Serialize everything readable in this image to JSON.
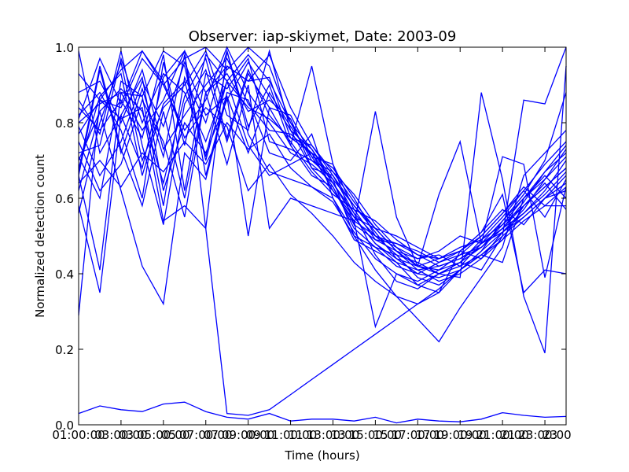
{
  "chart_data": {
    "type": "line",
    "title": "Observer: iap-skiymet, Date: 2003-09",
    "xlabel": "Time (hours)",
    "ylabel": "Normalized detection count",
    "xlim": [
      1,
      24
    ],
    "ylim": [
      0,
      1
    ],
    "x_ticks": [
      1,
      3,
      5,
      7,
      9,
      11,
      13,
      15,
      17,
      19,
      21,
      23
    ],
    "x_tick_labels": [
      "01:00:00",
      "03:00:00",
      "05:00:00",
      "07:00:00",
      "09:00:00",
      "11:00:00",
      "13:00:00",
      "15:00:00",
      "17:00:00",
      "19:00:00",
      "21:00:00",
      "23:00:00"
    ],
    "x_tick_labels_2": [
      "03",
      "05",
      "07",
      "09",
      "11",
      "13",
      "15",
      "17",
      "19",
      "21",
      "23",
      ""
    ],
    "y_ticks": [
      0,
      0.2,
      0.4,
      0.6,
      0.8,
      1.0
    ],
    "y_tick_labels": [
      "0.0",
      "0.2",
      "0.4",
      "0.6",
      "0.8",
      "1.0"
    ],
    "grid": false,
    "line_color": "#0000ff",
    "hours": [
      1,
      2,
      3,
      4,
      5,
      6,
      7,
      8,
      9,
      10,
      11,
      12,
      13,
      14,
      15,
      16,
      17,
      18,
      19,
      20,
      21,
      22,
      23,
      24
    ],
    "series": [
      {
        "values": [
          0.29,
          0.86,
          0.94,
          0.99,
          0.9,
          0.97,
          1.0,
          0.94,
          1.0,
          0.95,
          0.8,
          0.7,
          0.65,
          0.58,
          0.52,
          0.46,
          0.42,
          0.41,
          0.43,
          0.47,
          0.52,
          0.56,
          0.62,
          0.7
        ]
      },
      {
        "values": [
          0.66,
          0.41,
          0.88,
          0.78,
          0.86,
          0.99,
          0.88,
          0.95,
          0.91,
          0.98,
          0.84,
          0.74,
          0.67,
          0.61,
          0.53,
          0.47,
          0.42,
          0.4,
          0.42,
          0.45,
          0.5,
          0.55,
          0.6,
          0.66
        ]
      },
      {
        "values": [
          0.58,
          0.35,
          0.82,
          0.92,
          0.62,
          0.8,
          0.72,
          0.86,
          0.96,
          0.87,
          0.78,
          0.68,
          0.66,
          0.56,
          0.5,
          0.48,
          0.45,
          0.44,
          0.47,
          0.49,
          0.53,
          0.58,
          0.63,
          0.68
        ]
      },
      {
        "values": [
          0.82,
          0.88,
          0.78,
          0.6,
          0.96,
          0.74,
          0.98,
          0.91,
          0.84,
          0.81,
          0.76,
          0.72,
          0.62,
          0.55,
          0.48,
          0.44,
          0.4,
          0.43,
          0.46,
          0.44,
          0.51,
          0.57,
          0.65,
          0.71
        ]
      },
      {
        "values": [
          0.71,
          0.6,
          0.91,
          0.87,
          0.58,
          0.92,
          0.8,
          0.99,
          0.79,
          0.9,
          0.74,
          0.66,
          0.63,
          0.52,
          0.47,
          0.42,
          0.4,
          0.39,
          0.41,
          0.46,
          0.54,
          0.61,
          0.7,
          0.88
        ]
      },
      {
        "values": [
          0.86,
          0.77,
          0.99,
          0.74,
          0.53,
          0.85,
          0.94,
          0.75,
          0.93,
          0.84,
          0.82,
          0.71,
          0.69,
          0.57,
          0.49,
          0.46,
          0.44,
          0.46,
          0.5,
          0.48,
          0.52,
          0.59,
          0.67,
          0.74
        ]
      },
      {
        "values": [
          0.66,
          0.94,
          0.72,
          0.89,
          0.71,
          0.98,
          0.66,
          0.88,
          0.86,
          0.72,
          0.7,
          0.77,
          0.6,
          0.51,
          0.44,
          0.4,
          0.38,
          0.41,
          0.45,
          0.5,
          0.56,
          0.63,
          0.58,
          0.63
        ]
      },
      {
        "values": [
          0.77,
          0.86,
          0.84,
          0.97,
          0.9,
          0.78,
          0.86,
          1.0,
          0.88,
          0.8,
          0.72,
          0.69,
          0.64,
          0.55,
          0.48,
          0.43,
          0.41,
          0.42,
          0.44,
          0.47,
          0.53,
          0.6,
          0.66,
          0.6
        ]
      },
      {
        "values": [
          0.56,
          0.8,
          0.96,
          0.7,
          0.84,
          0.9,
          0.99,
          0.82,
          0.78,
          0.99,
          0.78,
          0.73,
          0.65,
          0.5,
          0.47,
          0.45,
          0.43,
          0.4,
          0.43,
          0.49,
          0.55,
          0.62,
          0.55,
          0.65
        ]
      },
      {
        "values": [
          0.75,
          0.62,
          0.69,
          0.86,
          0.75,
          0.55,
          0.88,
          0.93,
          0.83,
          0.86,
          0.81,
          0.68,
          0.62,
          0.54,
          0.5,
          0.47,
          0.44,
          0.45,
          0.42,
          0.48,
          0.51,
          0.56,
          0.61,
          0.67
        ]
      },
      {
        "values": [
          0.84,
          0.78,
          0.86,
          0.76,
          0.98,
          0.62,
          0.93,
          0.89,
          0.97,
          0.75,
          0.73,
          0.7,
          0.67,
          0.59,
          0.52,
          0.46,
          0.41,
          0.38,
          0.4,
          0.44,
          0.49,
          0.58,
          0.64,
          0.57
        ]
      },
      {
        "values": [
          0.68,
          0.87,
          0.93,
          0.66,
          0.85,
          0.91,
          0.71,
          0.95,
          0.91,
          0.92,
          0.76,
          0.74,
          0.66,
          0.58,
          0.51,
          0.44,
          0.42,
          0.44,
          0.46,
          0.51,
          0.57,
          0.53,
          0.6,
          0.62
        ]
      },
      {
        "values": [
          0.79,
          0.66,
          0.75,
          0.91,
          0.79,
          0.96,
          0.82,
          0.87,
          0.72,
          0.88,
          0.79,
          0.71,
          0.63,
          0.53,
          0.49,
          0.48,
          0.46,
          0.43,
          0.45,
          0.47,
          0.52,
          0.58,
          0.63,
          0.68
        ]
      },
      {
        "values": [
          0.62,
          0.83,
          0.89,
          0.83,
          0.64,
          0.87,
          0.97,
          0.76,
          0.94,
          0.82,
          0.75,
          0.67,
          0.61,
          0.57,
          0.54,
          0.49,
          0.45,
          0.42,
          0.44,
          0.48,
          0.54,
          0.6,
          0.67,
          0.72
        ]
      },
      {
        "values": [
          0.88,
          0.91,
          0.8,
          0.94,
          0.73,
          0.82,
          0.9,
          0.97,
          0.85,
          0.78,
          0.77,
          0.72,
          0.68,
          0.6,
          0.5,
          0.45,
          0.39,
          0.37,
          0.41,
          0.46,
          0.51,
          0.55,
          0.6,
          0.64
        ]
      },
      {
        "values": [
          0.72,
          0.74,
          0.97,
          0.8,
          0.93,
          0.88,
          0.75,
          0.91,
          0.98,
          0.91,
          0.8,
          0.73,
          0.64,
          0.55,
          0.52,
          0.5,
          0.47,
          0.44,
          0.46,
          0.5,
          0.56,
          0.62,
          0.69,
          0.75
        ]
      },
      {
        "values": [
          0.64,
          0.7,
          0.63,
          0.72,
          0.67,
          0.75,
          0.69,
          0.8,
          0.73,
          0.77,
          0.68,
          0.63,
          0.59,
          0.5,
          0.41,
          0.34,
          0.28,
          0.22,
          0.31,
          0.39,
          0.47,
          0.66,
          0.72,
          0.78
        ]
      },
      {
        "values": [
          0.81,
          0.97,
          0.85,
          0.99,
          0.91,
          0.76,
          0.84,
          0.79,
          0.62,
          0.69,
          0.61,
          0.56,
          0.5,
          0.43,
          0.38,
          0.34,
          0.32,
          0.35,
          0.41,
          0.45,
          0.43,
          0.6,
          0.65,
          0.73
        ]
      },
      {
        "values": [
          0.7,
          0.83,
          0.62,
          0.42,
          0.32,
          0.72,
          0.65,
          0.87,
          0.5,
          0.84,
          0.74,
          0.95,
          0.69,
          0.53,
          0.83,
          0.55,
          0.42,
          0.61,
          0.75,
          0.48,
          0.71,
          0.69,
          0.39,
          0.63
        ]
      },
      {
        "values": [
          0.8,
          0.85,
          0.88,
          0.87,
          0.99,
          0.95,
          0.7,
          0.91,
          0.74,
          0.66,
          0.69,
          0.72,
          0.64,
          0.56,
          0.45,
          0.38,
          0.36,
          0.4,
          0.43,
          0.41,
          0.5,
          0.86,
          0.85,
          1.0
        ]
      },
      {
        "values": [
          0.67,
          0.95,
          0.73,
          0.58,
          0.83,
          0.6,
          0.88,
          0.69,
          0.9,
          0.52,
          0.6,
          0.58,
          0.56,
          0.54,
          0.26,
          0.4,
          0.37,
          0.35,
          0.46,
          0.51,
          0.61,
          0.35,
          0.41,
          0.4
        ]
      },
      {
        "values": [
          0.93,
          0.86,
          0.81,
          0.84,
          0.54,
          0.58,
          0.52,
          0.99,
          0.77,
          0.67,
          0.65,
          0.63,
          0.6,
          0.49,
          0.46,
          0.43,
          0.37,
          0.4,
          0.39,
          0.88,
          0.65,
          0.34,
          0.19,
          0.95
        ]
      },
      {
        "values": [
          0.03,
          0.05,
          0.04,
          0.035,
          0.055,
          0.06,
          0.035,
          0.02,
          0.015,
          0.03,
          0.01,
          0.015,
          0.015,
          0.01,
          0.02,
          0.005,
          0.015,
          0.01,
          0.008,
          0.015,
          0.032,
          0.025,
          0.02,
          0.022
        ]
      },
      {
        "values": [
          0.99,
          0.72,
          0.82,
          0.68,
          0.92,
          0.99,
          0.52,
          0.03,
          0.025,
          0.04,
          0.08,
          0.12,
          0.16,
          0.2,
          0.24,
          0.28,
          0.32,
          0.36,
          0.41,
          0.45,
          0.49,
          0.54,
          0.58,
          0.58
        ]
      }
    ]
  }
}
